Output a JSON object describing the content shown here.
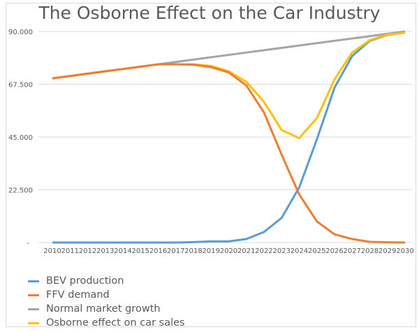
{
  "chart_data": {
    "type": "line",
    "title": "The Osborne Effect on the Car Industry",
    "categories": [
      "2010",
      "2011",
      "2012",
      "2013",
      "2014",
      "2015",
      "2016",
      "2017",
      "2018",
      "2019",
      "2020",
      "2021",
      "2022",
      "2023",
      "2024",
      "2025",
      "2026",
      "2027",
      "2028",
      "2029",
      "2030"
    ],
    "ylim": [
      0,
      90000
    ],
    "yticks": [
      0,
      22500,
      45000,
      67500,
      90000
    ],
    "ytick_labels": [
      "-",
      "22.500",
      "45.000",
      "67.500",
      "90.000"
    ],
    "grid": true,
    "legend_position": "bottom-left",
    "series": [
      {
        "name": "BEV production",
        "color": "#5b9bd5",
        "values": [
          0,
          0,
          0,
          0,
          0,
          0,
          0,
          0,
          200,
          500,
          500,
          1500,
          4500,
          10500,
          23500,
          44000,
          66000,
          79500,
          86000,
          88500,
          89500
        ]
      },
      {
        "name": "FFV demand",
        "color": "#ed7d31",
        "values": [
          70000,
          71000,
          72000,
          73000,
          74000,
          75000,
          76000,
          76000,
          75800,
          74800,
          72500,
          67000,
          55500,
          37500,
          20500,
          9000,
          3500,
          1500,
          300,
          100,
          0
        ]
      },
      {
        "name": "Normal market growth",
        "color": "#a5a5a5",
        "values": [
          70000,
          71000,
          72000,
          73000,
          74000,
          75000,
          76000,
          77000,
          78000,
          79000,
          80000,
          81000,
          82000,
          83000,
          84000,
          85000,
          86000,
          87000,
          88000,
          89000,
          90000
        ]
      },
      {
        "name": "Osborne effect on car sales",
        "color": "#ffc000",
        "values": [
          70000,
          71000,
          72000,
          73000,
          74000,
          75000,
          76000,
          76000,
          76000,
          75300,
          73000,
          68500,
          60000,
          48000,
          44500,
          53000,
          69500,
          81000,
          86300,
          88600,
          89500
        ]
      }
    ]
  }
}
